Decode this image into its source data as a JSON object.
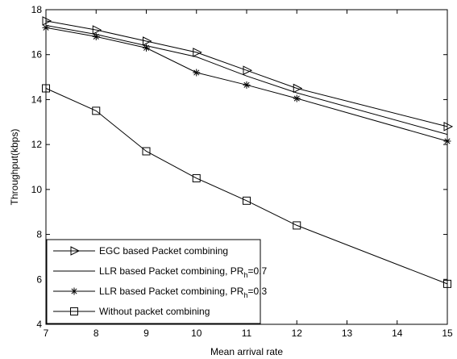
{
  "chart_data": {
    "type": "line",
    "title": "",
    "xlabel": "Mean arrival rate",
    "ylabel": "Throughput(kbps)",
    "xlim": [
      7,
      15
    ],
    "ylim": [
      4,
      18
    ],
    "xticks": [
      7,
      8,
      9,
      10,
      11,
      12,
      13,
      14,
      15
    ],
    "yticks": [
      4,
      6,
      8,
      10,
      12,
      14,
      16,
      18
    ],
    "grid": false,
    "legend_position": "bottom-left",
    "series": [
      {
        "name": "EGC based Packet combining",
        "marker": "triangle-right",
        "x": [
          7,
          8,
          9,
          10,
          11,
          12,
          15
        ],
        "y": [
          17.5,
          17.1,
          16.6,
          16.1,
          15.3,
          14.5,
          12.8
        ]
      },
      {
        "name": "LLR based Packet combining, PR",
        "name_sub": "h",
        "name_suffix": "=0.7",
        "marker": "none",
        "x": [
          7,
          8,
          9,
          10,
          11,
          12,
          15
        ],
        "y": [
          17.3,
          16.9,
          16.4,
          15.9,
          15.05,
          14.3,
          12.45
        ]
      },
      {
        "name": "LLR based Packet combining, PR",
        "name_sub": "h",
        "name_suffix": "=0.3",
        "marker": "star",
        "x": [
          7,
          8,
          9,
          10,
          11,
          12,
          15
        ],
        "y": [
          17.2,
          16.8,
          16.3,
          15.2,
          14.65,
          14.05,
          12.15
        ]
      },
      {
        "name": "Without packet combining",
        "marker": "square",
        "x": [
          7,
          8,
          9,
          10,
          11,
          12,
          15
        ],
        "y": [
          14.5,
          13.5,
          11.7,
          10.5,
          9.5,
          8.4,
          5.8
        ]
      }
    ]
  }
}
